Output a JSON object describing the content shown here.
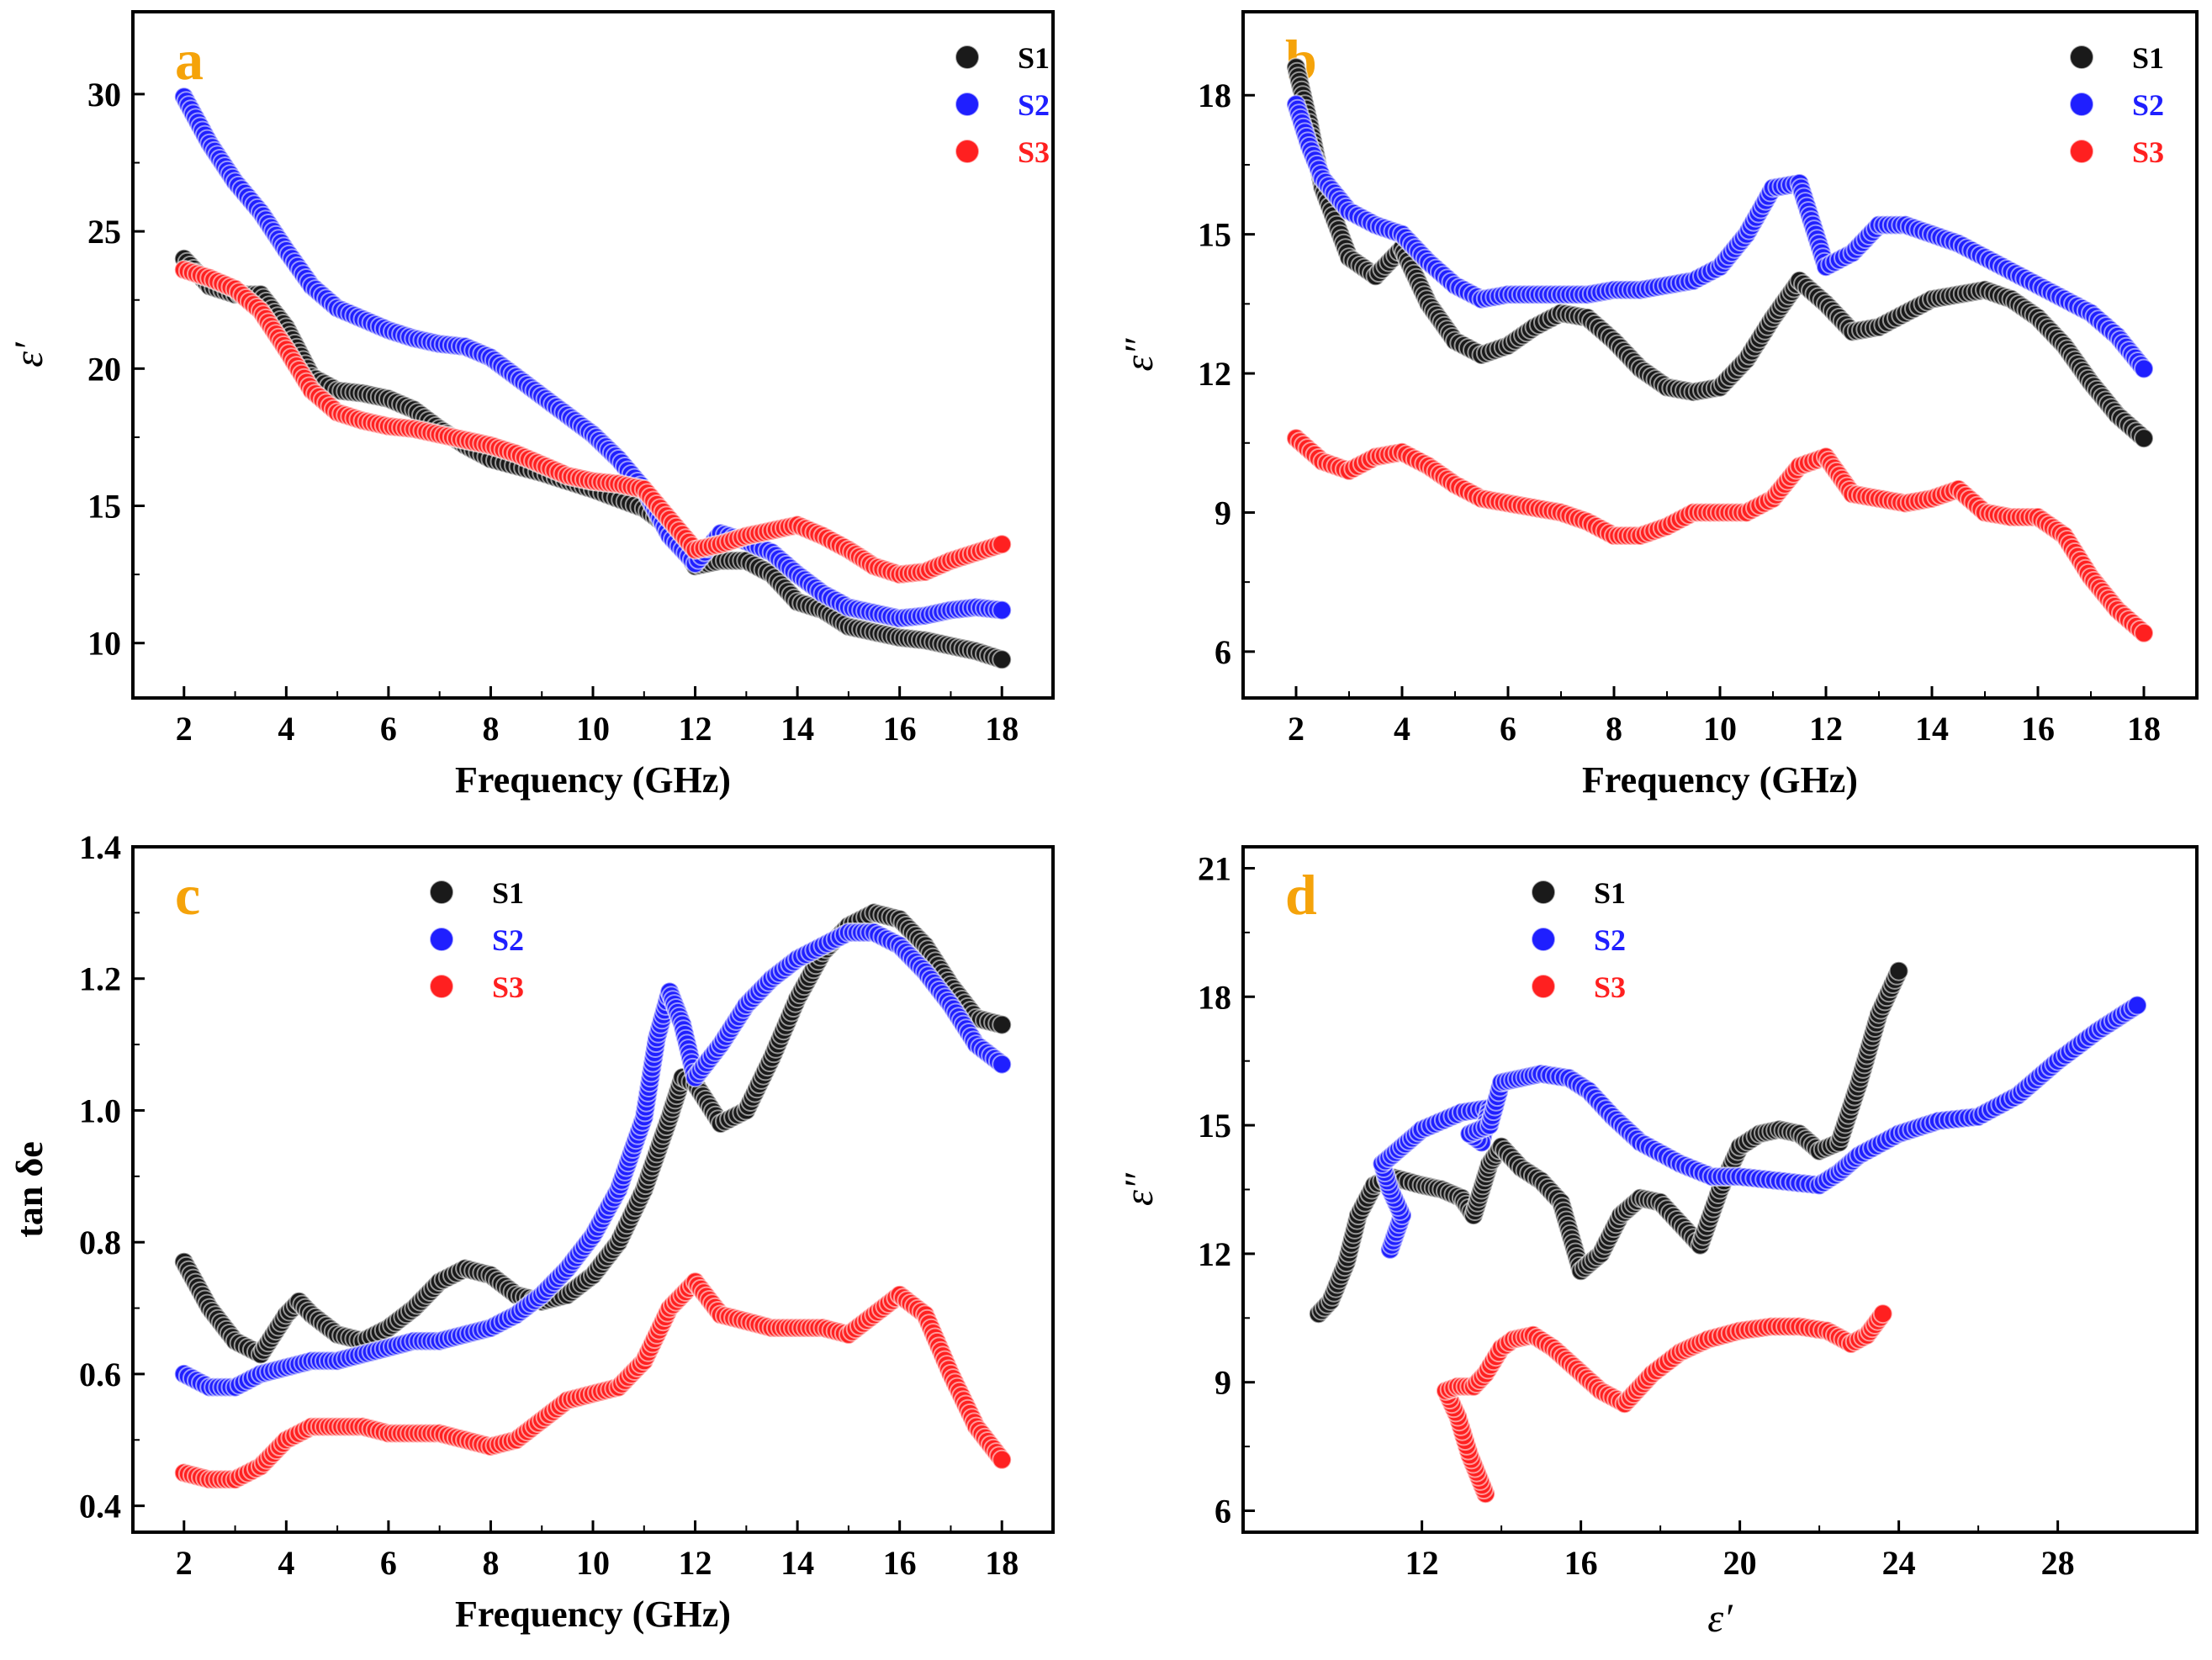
{
  "figure": {
    "title": ""
  },
  "colors": {
    "S1": "#1a1a1a",
    "S2": "#1f1fff",
    "S3": "#ff2020",
    "panel_label": "#f5a30a"
  },
  "chart_data": [
    {
      "panel": "a",
      "type": "scatter",
      "title": "",
      "xlabel": "Frequency (GHz)",
      "ylabel": "ε′",
      "xlim": [
        1,
        19
      ],
      "ylim": [
        8,
        33
      ],
      "xticks": [
        2,
        4,
        6,
        8,
        10,
        12,
        14,
        16,
        18
      ],
      "yticks": [
        10,
        15,
        20,
        25,
        30
      ],
      "legend_position": "top-right",
      "series": [
        {
          "name": "S1",
          "color": "#1a1a1a",
          "x": [
            2,
            2.5,
            3,
            3.5,
            4,
            4.5,
            5,
            5.5,
            6,
            6.5,
            7,
            7.5,
            8,
            9,
            10,
            11,
            11.5,
            12,
            12.5,
            13,
            13.5,
            14,
            14.5,
            15,
            15.5,
            16,
            16.5,
            17,
            17.5,
            18
          ],
          "y": [
            24,
            23,
            22.7,
            22.7,
            21.5,
            19.7,
            19.2,
            19.1,
            18.9,
            18.5,
            17.8,
            17.2,
            16.7,
            16.2,
            15.6,
            14.9,
            14.2,
            12.8,
            13,
            13,
            12.5,
            11.5,
            11.2,
            10.6,
            10.4,
            10.2,
            10.1,
            9.9,
            9.7,
            9.4
          ]
        },
        {
          "name": "S2",
          "color": "#1f1fff",
          "x": [
            2,
            2.5,
            3,
            3.5,
            4,
            4.5,
            5,
            5.5,
            6,
            6.5,
            7,
            7.5,
            8,
            8.5,
            9,
            9.5,
            10,
            10.5,
            11,
            11.5,
            12,
            12.5,
            13,
            13.5,
            14,
            14.5,
            15,
            15.5,
            16,
            16.5,
            17,
            17.5,
            18
          ],
          "y": [
            29.9,
            28.2,
            26.8,
            25.7,
            24.3,
            23,
            22.2,
            21.8,
            21.4,
            21.1,
            20.9,
            20.8,
            20.4,
            19.7,
            19,
            18.3,
            17.6,
            16.7,
            15.6,
            13.9,
            12.9,
            14,
            13.7,
            13.3,
            12.5,
            11.8,
            11.3,
            11.1,
            10.9,
            11,
            11.2,
            11.3,
            11.2
          ]
        },
        {
          "name": "S3",
          "color": "#ff2020",
          "x": [
            2,
            2.5,
            3,
            3.5,
            4,
            4.5,
            5,
            5.5,
            6,
            6.5,
            7,
            7.5,
            8,
            8.5,
            9,
            9.5,
            10,
            10.5,
            11,
            11.5,
            12,
            12.5,
            13,
            13.5,
            14,
            14.5,
            15,
            15.5,
            16,
            16.5,
            17,
            17.5,
            18
          ],
          "y": [
            23.6,
            23.3,
            22.9,
            22.1,
            20.7,
            19.2,
            18.4,
            18.1,
            17.9,
            17.8,
            17.6,
            17.4,
            17.2,
            16.9,
            16.5,
            16.1,
            15.9,
            15.8,
            15.6,
            14.5,
            13.4,
            13.6,
            13.9,
            14.1,
            14.3,
            13.9,
            13.4,
            12.8,
            12.5,
            12.6,
            13,
            13.3,
            13.6
          ]
        }
      ]
    },
    {
      "panel": "b",
      "type": "scatter",
      "title": "",
      "xlabel": "Frequency (GHz)",
      "ylabel": "ε″",
      "xlim": [
        1,
        19
      ],
      "ylim": [
        5,
        19.8
      ],
      "xticks": [
        2,
        4,
        6,
        8,
        10,
        12,
        14,
        16,
        18
      ],
      "yticks": [
        6,
        9,
        12,
        15,
        18
      ],
      "legend_position": "top-right",
      "series": [
        {
          "name": "S1",
          "color": "#1a1a1a",
          "x": [
            2,
            2.25,
            2.5,
            3,
            3.5,
            4,
            4.5,
            5,
            5.5,
            6,
            6.5,
            7,
            7.5,
            8,
            8.5,
            9,
            9.5,
            10,
            10.5,
            11,
            11.5,
            12,
            12.5,
            13,
            13.5,
            14,
            14.5,
            15,
            15.5,
            16,
            16.5,
            17,
            17.5,
            18
          ],
          "y": [
            18.6,
            17.4,
            16,
            14.5,
            14.1,
            14.7,
            13.5,
            12.7,
            12.4,
            12.6,
            13,
            13.3,
            13.2,
            12.7,
            12.1,
            11.7,
            11.6,
            11.7,
            12.3,
            13.2,
            14,
            13.5,
            12.9,
            13,
            13.3,
            13.6,
            13.7,
            13.8,
            13.6,
            13.2,
            12.6,
            11.8,
            11.1,
            10.6
          ]
        },
        {
          "name": "S2",
          "color": "#1f1fff",
          "x": [
            2,
            2.25,
            2.5,
            3,
            3.5,
            4,
            4.5,
            5,
            5.5,
            6,
            6.5,
            7,
            7.5,
            8,
            8.5,
            9,
            9.5,
            10,
            10.5,
            11,
            11.5,
            12,
            12.5,
            13,
            13.5,
            14,
            14.5,
            15,
            15.5,
            16,
            16.5,
            17,
            17.5,
            18
          ],
          "y": [
            17.8,
            16.9,
            16.2,
            15.5,
            15.2,
            15,
            14.4,
            13.9,
            13.6,
            13.7,
            13.7,
            13.7,
            13.7,
            13.8,
            13.8,
            13.9,
            14,
            14.3,
            15,
            16,
            16.1,
            14.3,
            14.6,
            15.2,
            15.2,
            15,
            14.8,
            14.5,
            14.2,
            13.9,
            13.6,
            13.3,
            12.8,
            12.1
          ]
        },
        {
          "name": "S3",
          "color": "#ff2020",
          "x": [
            2,
            2.5,
            3,
            3.5,
            4,
            4.5,
            5,
            5.5,
            6,
            6.5,
            7,
            7.5,
            8,
            8.5,
            9,
            9.5,
            10,
            10.5,
            11,
            11.5,
            12,
            12.5,
            13,
            13.5,
            14,
            14.5,
            15,
            15.5,
            16,
            16.5,
            17,
            17.5,
            18
          ],
          "y": [
            10.6,
            10.1,
            9.9,
            10.2,
            10.3,
            10,
            9.6,
            9.3,
            9.2,
            9.1,
            9,
            8.8,
            8.5,
            8.5,
            8.7,
            9,
            9,
            9,
            9.3,
            10,
            10.2,
            9.4,
            9.3,
            9.2,
            9.3,
            9.5,
            9,
            8.9,
            8.9,
            8.5,
            7.6,
            6.9,
            6.4
          ]
        }
      ]
    },
    {
      "panel": "c",
      "type": "scatter",
      "title": "",
      "xlabel": "Frequency (GHz)",
      "ylabel": "tan δe",
      "xlim": [
        1,
        19
      ],
      "ylim": [
        0.36,
        1.4
      ],
      "xticks": [
        2,
        4,
        6,
        8,
        10,
        12,
        14,
        16,
        18
      ],
      "yticks": [
        0.4,
        0.6,
        0.8,
        1.0,
        1.2,
        1.4
      ],
      "ytick_labels": [
        "0.4",
        "0.6",
        "0.8",
        "1.0",
        "1.2",
        "1.4"
      ],
      "legend_position": "top-center",
      "series": [
        {
          "name": "S1",
          "color": "#1a1a1a",
          "x": [
            2,
            2.5,
            3,
            3.5,
            4,
            4.25,
            4.5,
            5,
            5.5,
            6,
            6.5,
            7,
            7.5,
            8,
            8.5,
            9,
            9.5,
            10,
            10.5,
            11,
            11.5,
            11.75,
            12,
            12.5,
            13,
            13.5,
            14,
            14.5,
            15,
            15.5,
            16,
            16.5,
            17,
            17.5,
            18
          ],
          "y": [
            0.77,
            0.7,
            0.65,
            0.63,
            0.69,
            0.71,
            0.69,
            0.66,
            0.65,
            0.67,
            0.7,
            0.74,
            0.76,
            0.75,
            0.72,
            0.71,
            0.72,
            0.75,
            0.8,
            0.88,
            0.99,
            1.05,
            1.04,
            0.98,
            1.0,
            1.08,
            1.17,
            1.24,
            1.28,
            1.3,
            1.29,
            1.25,
            1.19,
            1.14,
            1.13
          ]
        },
        {
          "name": "S2",
          "color": "#1f1fff",
          "x": [
            2,
            2.5,
            3,
            3.5,
            4,
            4.5,
            5,
            5.5,
            6,
            6.5,
            7,
            7.5,
            8,
            8.5,
            9,
            9.5,
            10,
            10.5,
            11,
            11.25,
            11.5,
            11.75,
            12,
            12.5,
            13,
            13.5,
            14,
            14.5,
            15,
            15.5,
            16,
            16.5,
            17,
            17.5,
            18
          ],
          "y": [
            0.6,
            0.58,
            0.58,
            0.6,
            0.61,
            0.62,
            0.62,
            0.63,
            0.64,
            0.65,
            0.65,
            0.66,
            0.67,
            0.69,
            0.72,
            0.76,
            0.81,
            0.88,
            0.99,
            1.11,
            1.18,
            1.13,
            1.05,
            1.1,
            1.16,
            1.2,
            1.23,
            1.25,
            1.27,
            1.27,
            1.25,
            1.21,
            1.16,
            1.1,
            1.07
          ]
        },
        {
          "name": "S3",
          "color": "#ff2020",
          "x": [
            2,
            2.5,
            3,
            3.5,
            4,
            4.5,
            5,
            5.5,
            6,
            6.5,
            7,
            7.5,
            8,
            8.5,
            9,
            9.5,
            10,
            10.5,
            11,
            11.5,
            12,
            12.5,
            13,
            13.5,
            14,
            14.5,
            15,
            15.5,
            16,
            16.5,
            17,
            17.5,
            18
          ],
          "y": [
            0.45,
            0.44,
            0.44,
            0.46,
            0.5,
            0.52,
            0.52,
            0.52,
            0.51,
            0.51,
            0.51,
            0.5,
            0.49,
            0.5,
            0.53,
            0.56,
            0.57,
            0.58,
            0.62,
            0.7,
            0.74,
            0.69,
            0.68,
            0.67,
            0.67,
            0.67,
            0.66,
            0.69,
            0.72,
            0.69,
            0.6,
            0.52,
            0.47
          ]
        }
      ]
    },
    {
      "panel": "d",
      "type": "scatter",
      "title": "",
      "xlabel": "ε′",
      "ylabel": "ε″",
      "xlim": [
        7.5,
        31.5
      ],
      "ylim": [
        5.5,
        21.5
      ],
      "xticks": [
        12,
        16,
        20,
        24,
        28
      ],
      "yticks": [
        6,
        9,
        12,
        15,
        18,
        21
      ],
      "legend_position": "top-center",
      "series": [
        {
          "name": "S1",
          "color": "#1a1a1a",
          "x": [
            9.4,
            9.7,
            10.1,
            10.4,
            10.8,
            11.2,
            12,
            12.5,
            13,
            13.3,
            13.5,
            13.7,
            14,
            14.5,
            15,
            15.5,
            16,
            16.5,
            17,
            17.5,
            18,
            18.5,
            19,
            19.5,
            20,
            20.5,
            21,
            21.5,
            22,
            22.5,
            23,
            23.5,
            24
          ],
          "y": [
            10.6,
            10.9,
            11.8,
            12.9,
            13.6,
            13.8,
            13.6,
            13.5,
            13.3,
            12.9,
            13.5,
            14.1,
            14.5,
            14,
            13.7,
            13.2,
            11.6,
            12,
            12.9,
            13.3,
            13.2,
            12.7,
            12.2,
            13.5,
            14.5,
            14.8,
            14.9,
            14.8,
            14.4,
            14.6,
            16,
            17.6,
            18.6
          ]
        },
        {
          "name": "S2",
          "color": "#1f1fff",
          "x": [
            11.2,
            11.5,
            11.2,
            11,
            11.5,
            12,
            13,
            13.7,
            13.5,
            13.2,
            13.7,
            14,
            14.5,
            15,
            15.7,
            16.2,
            16.8,
            17.5,
            18.5,
            19.3,
            20,
            21,
            22,
            22.5,
            23,
            24,
            25,
            26,
            27,
            28,
            29,
            30
          ],
          "y": [
            12.1,
            12.9,
            13.5,
            14.1,
            14.5,
            14.9,
            15.3,
            15.4,
            14.6,
            14.8,
            15,
            16,
            16.1,
            16.2,
            16.1,
            15.8,
            15.2,
            14.6,
            14.1,
            13.8,
            13.8,
            13.7,
            13.6,
            13.9,
            14.3,
            14.8,
            15.1,
            15.2,
            15.7,
            16.5,
            17.2,
            17.8
          ]
        },
        {
          "name": "S3",
          "color": "#ff2020",
          "x": [
            13.6,
            13.2,
            12.9,
            12.6,
            12.9,
            13.3,
            13.6,
            14,
            14.3,
            14.8,
            15.3,
            15.9,
            16.5,
            17.1,
            17.8,
            18.5,
            19.2,
            20,
            20.8,
            21.5,
            22.2,
            22.8,
            23.2,
            23.6
          ],
          "y": [
            6.4,
            7.3,
            8.2,
            8.8,
            8.9,
            8.9,
            9.2,
            9.8,
            10,
            10.1,
            9.8,
            9.3,
            8.8,
            8.5,
            9.2,
            9.7,
            10,
            10.2,
            10.3,
            10.3,
            10.2,
            9.9,
            10.1,
            10.6
          ]
        }
      ]
    }
  ]
}
